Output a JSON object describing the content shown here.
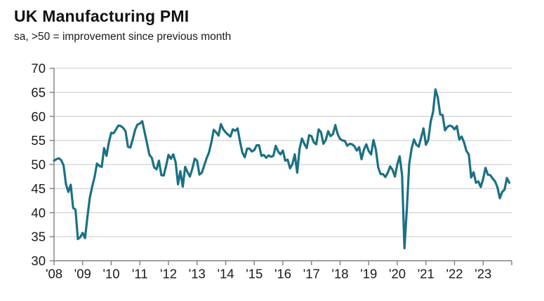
{
  "header": {
    "title": "UK Manufacturing PMI",
    "subtitle": "sa, >50 = improvement since previous month"
  },
  "chart_data": {
    "type": "line",
    "title": "UK Manufacturing PMI",
    "subtitle": "sa, >50 = improvement since previous month",
    "x_unit": "month",
    "x_range": "Jan 2008 - Dec 2023",
    "x_tick_labels": [
      "'08",
      "'09",
      "'10",
      "'11",
      "'12",
      "'13",
      "'14",
      "'15",
      "'16",
      "'17",
      "'18",
      "'19",
      "'20",
      "'21",
      "'22",
      "'23"
    ],
    "y_ticks": [
      30,
      35,
      40,
      45,
      50,
      55,
      60,
      65,
      70
    ],
    "y_tick_labels": [
      "30",
      "35",
      "40",
      "45",
      "50",
      "55",
      "60",
      "65",
      "70"
    ],
    "ylim": [
      30,
      70
    ],
    "grid": "horizontal",
    "legend": "none",
    "colors": {
      "line": "#1b7085",
      "axis": "#7f7f7f",
      "grid": "#d9d9d9",
      "text": "#1a1a1a",
      "background": "#ffffff"
    },
    "series": [
      {
        "name": "UK Manufacturing PMI (sa)",
        "start": "2008-01",
        "frequency": "monthly",
        "values": [
          50.8,
          51.1,
          51.3,
          50.9,
          49.8,
          45.9,
          44.3,
          45.8,
          41.0,
          40.6,
          34.5,
          34.9,
          35.8,
          34.7,
          39.1,
          43.1,
          45.4,
          47.4,
          50.2,
          49.7,
          49.5,
          53.4,
          51.8,
          54.6,
          56.6,
          56.5,
          57.3,
          58.1,
          58.0,
          57.6,
          56.9,
          53.7,
          53.5,
          55.2,
          57.2,
          58.3,
          58.5,
          59.0,
          56.7,
          54.4,
          52.0,
          51.4,
          49.4,
          49.0,
          50.8,
          47.8,
          47.7,
          49.7,
          52.0,
          51.2,
          52.1,
          50.5,
          45.9,
          48.6,
          45.4,
          49.5,
          48.4,
          47.5,
          49.1,
          51.2,
          50.8,
          47.9,
          48.3,
          49.8,
          51.3,
          52.5,
          54.6,
          57.2,
          56.7,
          56.0,
          58.4,
          57.3,
          56.7,
          56.2,
          55.8,
          57.3,
          57.0,
          57.5,
          54.8,
          52.5,
          51.5,
          53.3,
          53.3,
          52.7,
          53.0,
          54.0,
          54.0,
          51.8,
          52.0,
          51.4,
          51.9,
          51.6,
          51.8,
          53.9,
          52.7,
          52.1,
          52.9,
          50.8,
          51.0,
          49.2,
          50.1,
          52.1,
          48.3,
          53.3,
          55.4,
          54.3,
          53.4,
          56.1,
          55.9,
          54.6,
          54.2,
          57.3,
          56.7,
          54.3,
          55.1,
          56.9,
          55.9,
          56.3,
          58.2,
          56.3,
          55.3,
          55.0,
          54.9,
          53.9,
          54.3,
          54.2,
          53.8,
          52.9,
          53.6,
          51.1,
          53.1,
          54.2,
          52.8,
          52.1,
          55.1,
          53.1,
          49.4,
          48.0,
          48.0,
          47.4,
          48.3,
          49.6,
          48.9,
          47.5,
          50.0,
          51.7,
          47.8,
          32.6,
          40.7,
          50.1,
          53.3,
          55.2,
          54.1,
          53.7,
          55.6,
          57.5,
          54.1,
          55.1,
          58.9,
          60.9,
          65.6,
          63.9,
          60.4,
          60.3,
          57.1,
          57.8,
          58.1,
          57.9,
          57.3,
          58.0,
          55.2,
          55.8,
          54.6,
          52.8,
          52.1,
          47.3,
          48.4,
          46.2,
          46.5,
          45.3,
          47.0,
          49.3,
          47.9,
          47.8,
          47.1,
          46.5,
          45.3,
          43.0,
          44.3,
          44.8,
          47.2,
          46.2
        ]
      }
    ]
  }
}
